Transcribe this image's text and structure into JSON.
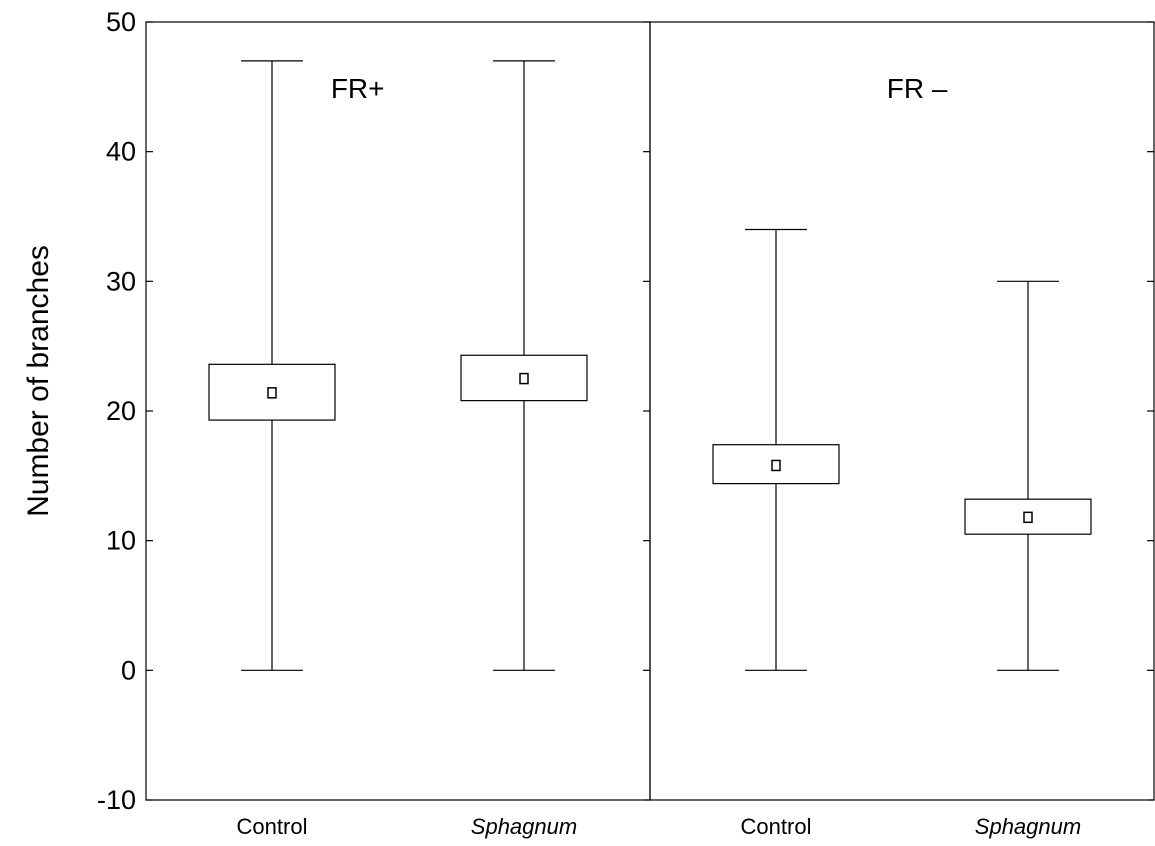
{
  "chart_data": {
    "type": "box",
    "ylabel": "Number of branches",
    "ylim": [
      -10,
      50
    ],
    "yticks": [
      -10,
      0,
      10,
      20,
      30,
      40,
      50
    ],
    "grid": false,
    "panels": [
      {
        "label": "FR+",
        "groups": [
          {
            "category": "Control",
            "italic": false,
            "min": 0,
            "q1": 19.3,
            "mean": 21.4,
            "q3": 23.6,
            "max": 47
          },
          {
            "category": "Sphagnum",
            "italic": true,
            "min": 0,
            "q1": 20.8,
            "mean": 22.5,
            "q3": 24.3,
            "max": 47
          }
        ]
      },
      {
        "label": "FR –",
        "groups": [
          {
            "category": "Control",
            "italic": false,
            "min": 0,
            "q1": 14.4,
            "mean": 15.8,
            "q3": 17.4,
            "max": 34
          },
          {
            "category": "Sphagnum",
            "italic": true,
            "min": 0,
            "q1": 10.5,
            "mean": 11.8,
            "q3": 13.2,
            "max": 30
          }
        ]
      }
    ]
  }
}
